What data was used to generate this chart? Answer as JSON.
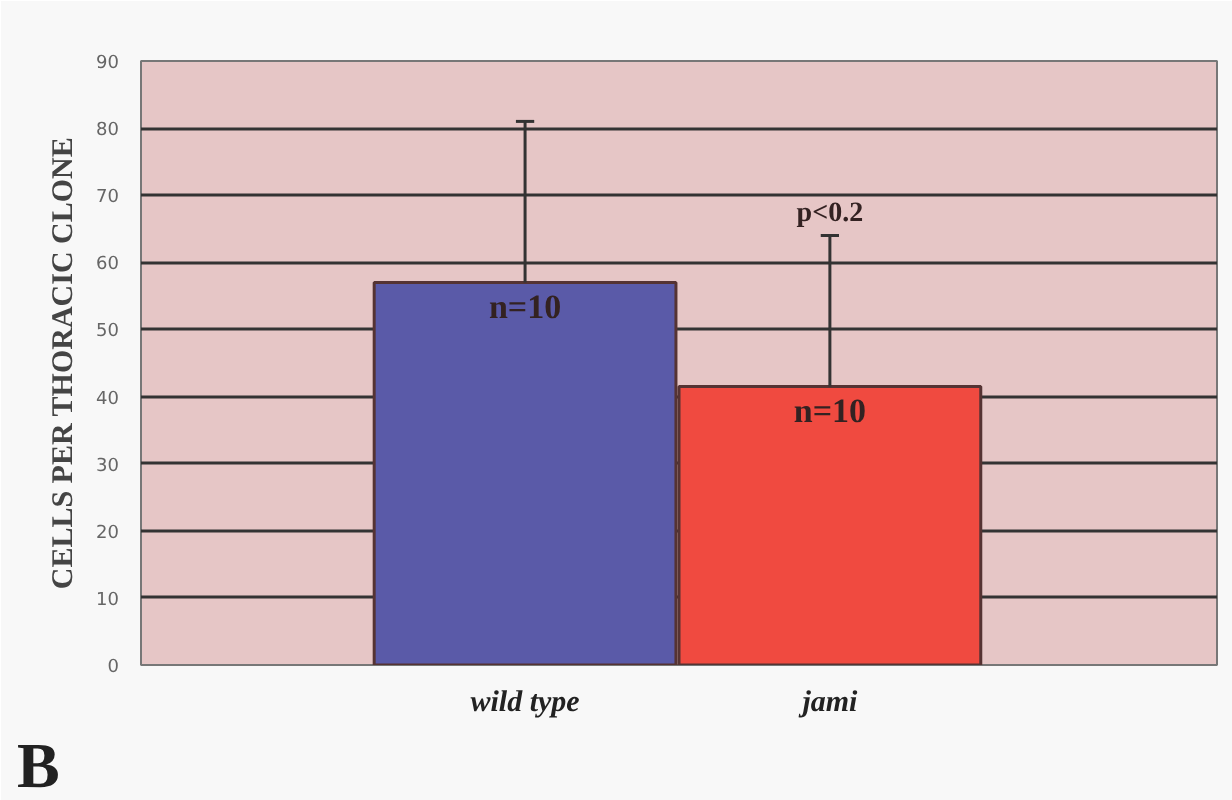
{
  "chart_data": {
    "type": "bar",
    "ylabel": "CELLS PER THORACIC CLONE",
    "categories": [
      "wild type",
      "jami"
    ],
    "values": [
      57,
      41.5
    ],
    "colors": [
      "#5a5aa8",
      "#f04a40"
    ],
    "errors": [
      [
        57,
        81
      ],
      [
        41.5,
        64
      ]
    ],
    "ylim": [
      0,
      90
    ],
    "yticks": [
      0,
      10,
      20,
      30,
      40,
      50,
      60,
      70,
      80,
      90
    ],
    "grid": "y",
    "annotations": [
      {
        "text": "n=10",
        "x": "wild type",
        "y": 57
      },
      {
        "text": "n=10",
        "x": "jami",
        "y": 41.5
      },
      "p<0.2",
      "B"
    ]
  }
}
